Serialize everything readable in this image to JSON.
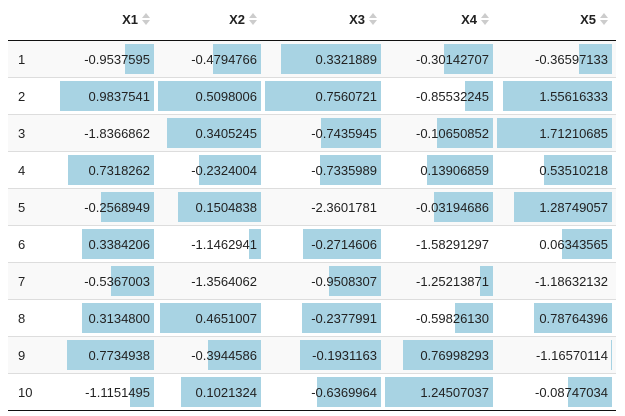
{
  "table": {
    "headers": [
      "X1",
      "X2",
      "X3",
      "X4",
      "X5"
    ],
    "rows": [
      [
        "1",
        "-0.9537595",
        "-0.4794766",
        "0.3321889",
        "-0.30142707",
        "-0.36597133"
      ],
      [
        "2",
        "0.9837541",
        "0.5098006",
        "0.7560721",
        "-0.85532245",
        "1.55616333"
      ],
      [
        "3",
        "-1.8366862",
        "0.3405245",
        "-0.7435945",
        "-0.10650852",
        "1.71210685"
      ],
      [
        "4",
        "0.7318262",
        "-0.2324004",
        "-0.7335989",
        "0.13906859",
        "0.53510218"
      ],
      [
        "5",
        "-0.2568949",
        "0.1504838",
        "-2.3601781",
        "-0.03194686",
        "1.28749057"
      ],
      [
        "6",
        "0.3384206",
        "-1.1462941",
        "-0.2714606",
        "-1.58291297",
        "0.06343565"
      ],
      [
        "7",
        "-0.5367003",
        "-1.3564062",
        "-0.9508307",
        "-1.25213871",
        "-1.18632132"
      ],
      [
        "8",
        "0.3134800",
        "0.4651007",
        "-0.2377991",
        "-0.59826130",
        "0.78764396"
      ],
      [
        "9",
        "0.7734938",
        "-0.3944586",
        "-0.1931163",
        "0.76998293",
        "-1.16570114"
      ],
      [
        "10",
        "-1.1151495",
        "0.1021324",
        "-0.6369964",
        "1.24507037",
        "-0.08747034"
      ]
    ]
  }
}
